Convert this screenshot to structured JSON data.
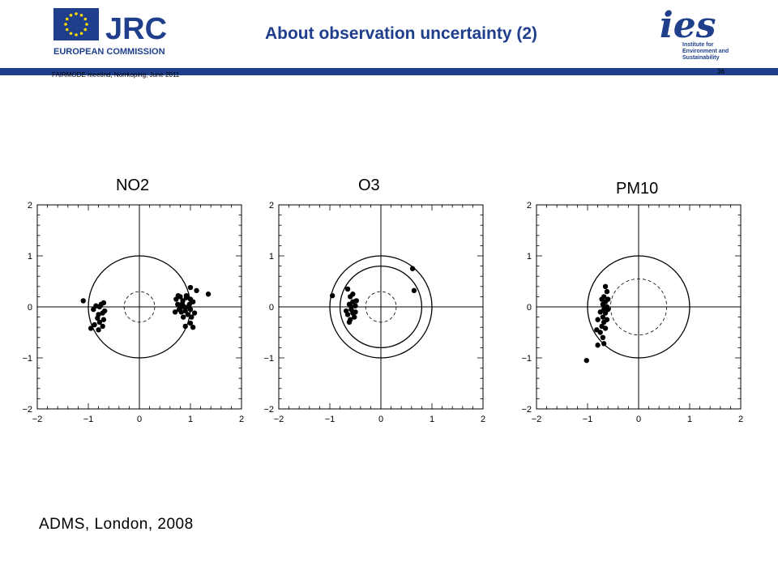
{
  "header": {
    "title": "About observation uncertainty (2)",
    "jrc_logo": {
      "acronym": "JRC",
      "subtitle": "EUROPEAN COMMISSION",
      "icon": "eu-flag-icon"
    },
    "ies_logo": {
      "acronym": "ies",
      "lines": [
        "Institute for",
        "Environment and",
        "Sustainability"
      ]
    },
    "meeting": "FAIRMODE meetind, Norrkoping, June 2011",
    "page_number": "36"
  },
  "colors": {
    "brand_blue": "#1f3f8c",
    "ies_blue": "#1f3f8c",
    "eu_yellow": "#ffdd00"
  },
  "caption": "ADMS, London, 2008",
  "chart_data": [
    {
      "type": "scatter",
      "title": "NO2",
      "xlim": [
        -2,
        2
      ],
      "ylim": [
        -2,
        2
      ],
      "xticks": [
        "-2",
        "-1",
        "0",
        "1",
        "2"
      ],
      "yticks": [
        "-2",
        "-1",
        "0",
        "1",
        "2"
      ],
      "circles": [
        {
          "r": 1.0,
          "style": "solid"
        },
        {
          "r": 0.3,
          "style": "dashed"
        }
      ],
      "points": [
        [
          -1.1,
          0.12
        ],
        [
          -0.9,
          -0.05
        ],
        [
          -0.85,
          0.02
        ],
        [
          -0.8,
          -0.15
        ],
        [
          -0.78,
          -0.3
        ],
        [
          -0.75,
          0.05
        ],
        [
          -0.72,
          -0.12
        ],
        [
          -0.7,
          -0.25
        ],
        [
          -0.68,
          -0.08
        ],
        [
          -0.72,
          -0.38
        ],
        [
          -0.82,
          -0.22
        ],
        [
          -0.95,
          -0.42
        ],
        [
          -0.78,
          0.0
        ],
        [
          -0.88,
          -0.35
        ],
        [
          -0.7,
          0.08
        ],
        [
          -0.8,
          -0.45
        ],
        [
          0.72,
          0.15
        ],
        [
          0.75,
          0.05
        ],
        [
          0.78,
          -0.05
        ],
        [
          0.8,
          0.2
        ],
        [
          0.82,
          -0.1
        ],
        [
          0.85,
          0.12
        ],
        [
          0.88,
          0.0
        ],
        [
          0.9,
          -0.08
        ],
        [
          0.92,
          0.18
        ],
        [
          0.95,
          -0.15
        ],
        [
          0.98,
          0.05
        ],
        [
          1.0,
          -0.05
        ],
        [
          1.02,
          -0.2
        ],
        [
          1.05,
          0.1
        ],
        [
          1.08,
          -0.12
        ],
        [
          0.7,
          -0.1
        ],
        [
          0.76,
          0.22
        ],
        [
          0.86,
          -0.2
        ],
        [
          0.96,
          0.0
        ],
        [
          1.0,
          -0.32
        ],
        [
          1.05,
          -0.4
        ],
        [
          0.9,
          -0.38
        ],
        [
          0.8,
          -0.02
        ],
        [
          0.92,
          0.22
        ],
        [
          1.0,
          0.38
        ],
        [
          1.12,
          0.32
        ],
        [
          1.35,
          0.25
        ],
        [
          1.0,
          0.15
        ],
        [
          0.84,
          0.06
        ]
      ]
    },
    {
      "type": "scatter",
      "title": "O3",
      "xlim": [
        -2,
        2
      ],
      "ylim": [
        -2,
        2
      ],
      "xticks": [
        "-2",
        "-1",
        "0",
        "1",
        "2"
      ],
      "yticks": [
        "-2",
        "-1",
        "0",
        "1",
        "2"
      ],
      "circles": [
        {
          "r": 1.0,
          "style": "solid"
        },
        {
          "r": 0.8,
          "style": "solid"
        },
        {
          "r": 0.3,
          "style": "dashed"
        }
      ],
      "points": [
        [
          -0.95,
          0.22
        ],
        [
          -0.65,
          0.35
        ],
        [
          -0.6,
          0.2
        ],
        [
          -0.55,
          0.1
        ],
        [
          -0.62,
          0.05
        ],
        [
          -0.58,
          -0.05
        ],
        [
          -0.55,
          -0.12
        ],
        [
          -0.65,
          -0.15
        ],
        [
          -0.6,
          -0.25
        ],
        [
          -0.52,
          -0.2
        ],
        [
          -0.58,
          0.0
        ],
        [
          -0.5,
          0.02
        ],
        [
          -0.62,
          -0.3
        ],
        [
          -0.55,
          0.25
        ],
        [
          -0.68,
          -0.08
        ],
        [
          -0.5,
          -0.1
        ],
        [
          -0.48,
          0.12
        ],
        [
          0.62,
          0.75
        ],
        [
          0.65,
          0.32
        ]
      ]
    },
    {
      "type": "scatter",
      "title": "PM10",
      "xlim": [
        -2,
        2
      ],
      "ylim": [
        -2,
        2
      ],
      "xticks": [
        "-2",
        "-1",
        "0",
        "1",
        "2"
      ],
      "yticks": [
        "-2",
        "-1",
        "0",
        "1",
        "2"
      ],
      "circles": [
        {
          "r": 1.0,
          "style": "solid"
        },
        {
          "r": 0.55,
          "style": "dashed"
        }
      ],
      "points": [
        [
          -0.65,
          0.4
        ],
        [
          -0.62,
          0.3
        ],
        [
          -0.68,
          0.2
        ],
        [
          -0.65,
          0.1
        ],
        [
          -0.7,
          0.05
        ],
        [
          -0.62,
          0.0
        ],
        [
          -0.68,
          -0.05
        ],
        [
          -0.65,
          -0.12
        ],
        [
          -0.7,
          -0.2
        ],
        [
          -0.62,
          -0.25
        ],
        [
          -0.68,
          -0.3
        ],
        [
          -0.72,
          -0.38
        ],
        [
          -0.65,
          -0.42
        ],
        [
          -0.8,
          -0.25
        ],
        [
          -0.82,
          -0.45
        ],
        [
          -0.75,
          -0.5
        ],
        [
          -0.7,
          -0.6
        ],
        [
          -0.8,
          -0.75
        ],
        [
          -0.68,
          -0.72
        ],
        [
          -1.02,
          -1.05
        ],
        [
          -0.6,
          0.15
        ],
        [
          -0.72,
          0.15
        ],
        [
          -0.6,
          -0.05
        ],
        [
          -0.75,
          -0.1
        ]
      ]
    }
  ]
}
